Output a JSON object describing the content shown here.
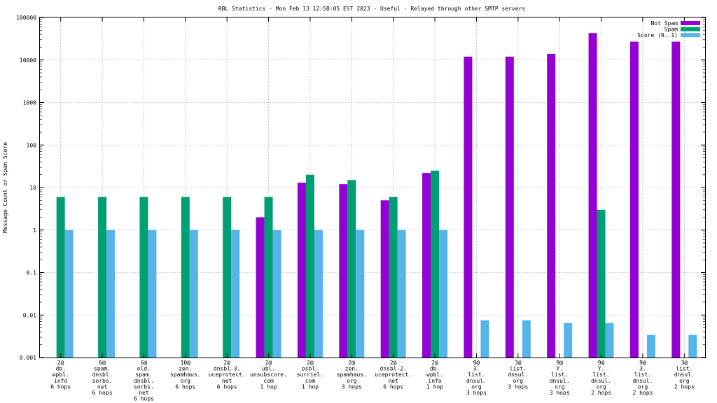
{
  "chart_data": {
    "type": "bar",
    "title": "RBL Statistics - Mon Feb 13 12:58:05 EST 2023 - Useful - Relayed through other SMTP servers",
    "xlabel": "",
    "ylabel": "Message Count or Spam Score",
    "yscale": "log",
    "ylim": [
      0.001,
      100000
    ],
    "yticks": [
      "0.001",
      "0.01",
      "0.1",
      "1",
      "10",
      "100",
      "1000",
      "10000",
      "100000"
    ],
    "grid": true,
    "legend_position": "top-right",
    "categories": [
      [
        "2@",
        "db.",
        "wpbl.",
        "info",
        "6 hops"
      ],
      [
        "6@",
        "spam.",
        "dnsbl.",
        "sorbs.",
        "net",
        "6 hops"
      ],
      [
        "6@",
        "old.",
        "spam.",
        "dnsbl.",
        "sorbs.",
        "net",
        "6 hops"
      ],
      [
        "10@",
        "zen.",
        "spamhaus.",
        "org",
        "6 hops"
      ],
      [
        "2@",
        "dnsbl-3.",
        "uceprotect.",
        "net",
        "6 hops"
      ],
      [
        "2@",
        "ubl.",
        "unsubscore.",
        "com",
        "1 hop"
      ],
      [
        "2@",
        "psbl.",
        "surriel.",
        "com",
        "1 hop"
      ],
      [
        "2@",
        "zen.",
        "spamhaus.",
        "org",
        "3 hops"
      ],
      [
        "2@",
        "dnsbl-2.",
        "uceprotect.",
        "net",
        "6 hops"
      ],
      [
        "2@",
        "db.",
        "wpbl.",
        "info",
        "1 hop"
      ],
      [
        "9@",
        "3.",
        "list.",
        "dnsul.",
        "org",
        "3 hops"
      ],
      [
        "3@",
        "list.",
        "dnsul.",
        "org",
        "3 hops"
      ],
      [
        "9@",
        "Y.",
        "list.",
        "dnsul.",
        "org",
        "3 hops"
      ],
      [
        "9@",
        "Y.",
        "list.",
        "dnsul.",
        "org",
        "2 hops"
      ],
      [
        "9@",
        "3.",
        "list.",
        "dnsul.",
        "org",
        "2 hops"
      ],
      [
        "3@",
        "list.",
        "dnsul.",
        "org",
        "2 hops"
      ]
    ],
    "series": [
      {
        "name": "Not Spam",
        "color": "#9400d3",
        "values": [
          null,
          null,
          null,
          null,
          null,
          2,
          13,
          12,
          5,
          22,
          12000,
          12000,
          14000,
          43000,
          27000,
          27000
        ]
      },
      {
        "name": "Spam",
        "color": "#009e73",
        "values": [
          6,
          6,
          6,
          6,
          6,
          6,
          20,
          15,
          6,
          25,
          null,
          null,
          null,
          3,
          null,
          null
        ]
      },
      {
        "name": "Score (0..1)",
        "color": "#56b4e9",
        "values": [
          1,
          1,
          1,
          1,
          1,
          1,
          1,
          1,
          1,
          1,
          0.0075,
          0.0075,
          0.0065,
          0.0065,
          0.0034,
          0.0034
        ]
      }
    ]
  }
}
